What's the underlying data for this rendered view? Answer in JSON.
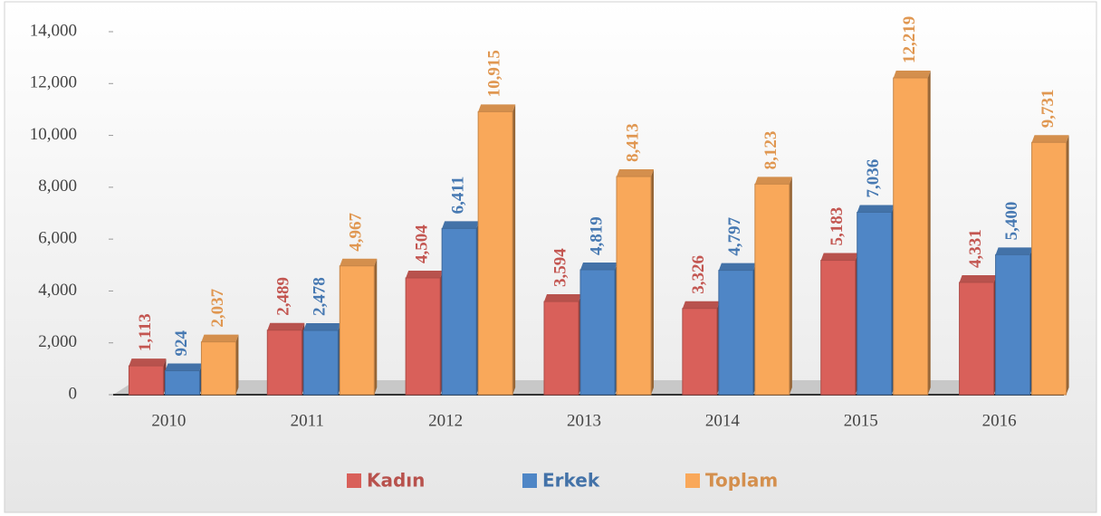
{
  "chart_data": {
    "type": "bar",
    "categories": [
      "2010",
      "2011",
      "2012",
      "2013",
      "2014",
      "2015",
      "2016"
    ],
    "series": [
      {
        "name": "Kadın",
        "color": "#d9605a",
        "values": [
          1113,
          2489,
          4504,
          3594,
          3326,
          5183,
          4331
        ],
        "value_labels": [
          "1,113",
          "2,489",
          "4,504",
          "3,594",
          "3,326",
          "5,183",
          "4,331"
        ]
      },
      {
        "name": "Erkek",
        "color": "#4f86c6",
        "values": [
          924,
          2478,
          6411,
          4819,
          4797,
          7036,
          5400
        ],
        "value_labels": [
          "924",
          "2,478",
          "6,411",
          "4,819",
          "4,797",
          "7,036",
          "5,400"
        ]
      },
      {
        "name": "Toplam",
        "color": "#f9a85a",
        "values": [
          2037,
          4967,
          10915,
          8413,
          8123,
          12219,
          9731
        ],
        "value_labels": [
          "2,037",
          "4,967",
          "10,915",
          "8,413",
          "8,123",
          "12,219",
          "9,731"
        ]
      }
    ],
    "ylim": [
      0,
      14000
    ],
    "yticks": [
      0,
      {
        "value": 2000,
        "label": "2,000"
      },
      {
        "value": 4000,
        "label": "4,000"
      },
      {
        "value": 6000,
        "label": "6,000"
      },
      {
        "value": 8000,
        "label": "8,000"
      },
      {
        "value": 10000,
        "label": "10,000"
      },
      {
        "value": 12000,
        "label": "12,000"
      },
      {
        "value": 14000,
        "label": "14,000"
      }
    ],
    "grid": false,
    "legend": "bottom"
  }
}
